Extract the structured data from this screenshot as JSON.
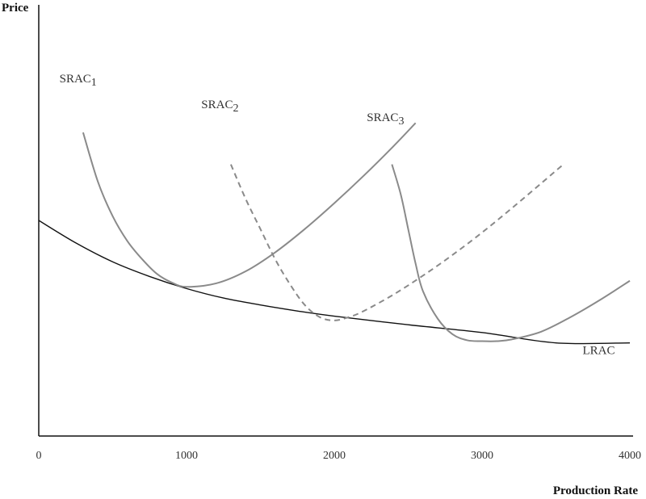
{
  "chart_data": {
    "type": "line",
    "xlabel": "Production Rate",
    "ylabel": "Price",
    "xlim": [
      0,
      4000
    ],
    "ylim": [
      0,
      5
    ],
    "x_ticks": [
      0,
      1000,
      2000,
      3000,
      4000
    ],
    "x_tick_labels": [
      "0",
      "1000",
      "2000",
      "3000",
      "4000"
    ],
    "grid": false,
    "legend": "none",
    "series": [
      {
        "name": "LRAC",
        "label_main": "LRAC",
        "label_sub": "",
        "color": "#111111",
        "dashed": false,
        "x": [
          0,
          250,
          500,
          750,
          1000,
          1250,
          1500,
          1750,
          2000,
          2500,
          3000,
          3500,
          4000
        ],
        "y": [
          2.5,
          2.24,
          2.02,
          1.85,
          1.71,
          1.6,
          1.52,
          1.45,
          1.39,
          1.29,
          1.2,
          1.08,
          1.08
        ]
      },
      {
        "name": "SRAC1",
        "label_main": "SRAC",
        "label_sub": "1",
        "color": "#8a8a8a",
        "dashed": false,
        "x": [
          300,
          400,
          500,
          600,
          700,
          800,
          900,
          1000,
          1200,
          1400,
          1600,
          1800,
          2000,
          2200,
          2400,
          2550
        ],
        "y": [
          3.52,
          2.95,
          2.55,
          2.26,
          2.05,
          1.88,
          1.78,
          1.73,
          1.77,
          1.91,
          2.13,
          2.4,
          2.7,
          3.02,
          3.36,
          3.63
        ]
      },
      {
        "name": "SRAC2",
        "label_main": "SRAC",
        "label_sub": "2",
        "color": "#8a8a8a",
        "dashed": true,
        "x": [
          1300,
          1400,
          1500,
          1600,
          1700,
          1800,
          1900,
          2000,
          2100,
          2200,
          2400,
          2600,
          2800,
          3000,
          3200,
          3400,
          3550
        ],
        "y": [
          3.15,
          2.75,
          2.4,
          2.05,
          1.76,
          1.52,
          1.38,
          1.34,
          1.38,
          1.45,
          1.64,
          1.86,
          2.1,
          2.36,
          2.64,
          2.93,
          3.15
        ]
      },
      {
        "name": "SRAC3",
        "label_main": "SRAC",
        "label_sub": "3",
        "color": "#8a8a8a",
        "dashed": false,
        "x": [
          2390,
          2450,
          2500,
          2550,
          2600,
          2700,
          2800,
          2900,
          3000,
          3100,
          3200,
          3400,
          3600,
          3800,
          4000
        ],
        "y": [
          3.15,
          2.8,
          2.4,
          2.0,
          1.68,
          1.36,
          1.18,
          1.11,
          1.1,
          1.1,
          1.12,
          1.21,
          1.38,
          1.58,
          1.8
        ]
      }
    ]
  }
}
